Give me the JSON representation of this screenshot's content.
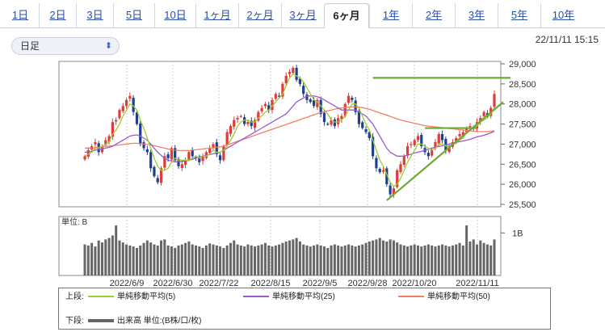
{
  "tabs": [
    {
      "label": "1日"
    },
    {
      "label": "2日"
    },
    {
      "label": "3日"
    },
    {
      "label": "5日"
    },
    {
      "label": "10日"
    },
    {
      "label": "1ヶ月"
    },
    {
      "label": "2ヶ月"
    },
    {
      "label": "3ヶ月"
    },
    {
      "label": "6ヶ月"
    },
    {
      "label": "1年"
    },
    {
      "label": "2年"
    },
    {
      "label": "3年"
    },
    {
      "label": "5年"
    },
    {
      "label": "10年"
    }
  ],
  "active_tab": "6ヶ月",
  "period_select": {
    "value": "日足"
  },
  "timestamp": "22/11/11 15:15",
  "colors": {
    "up": "#e03a3a",
    "down": "#1f3f8f",
    "ma5": "#9acd32",
    "ma25": "#9b59d0",
    "ma50": "#f08060",
    "trend": "#6fa832",
    "volume": "#666666"
  },
  "chart_data": {
    "type": "candlestick",
    "y_ticks": [
      "29,000",
      "28,500",
      "28,000",
      "27,500",
      "27,000",
      "26,500",
      "26,000",
      "25,500"
    ],
    "ylim": [
      25500,
      29000
    ],
    "x_labels": [
      "2022/6/9",
      "2022/6/30",
      "2022/7/22",
      "2022/8/15",
      "2022/9/5",
      "2022/9/28",
      "2022/10/20",
      "2022/11/11"
    ],
    "volume_unit_label": "単位: B",
    "volume_tick": "1B",
    "closes": [
      26700,
      26850,
      26950,
      27050,
      26800,
      26950,
      27100,
      27200,
      27550,
      27600,
      27850,
      27950,
      28100,
      28200,
      27800,
      27500,
      27000,
      26900,
      26800,
      26400,
      26200,
      26050,
      26400,
      26700,
      26650,
      26900,
      26600,
      26450,
      26500,
      26600,
      26800,
      26700,
      26650,
      26550,
      26700,
      26800,
      26900,
      27000,
      26750,
      26600,
      26950,
      27300,
      27450,
      27600,
      27650,
      27700,
      27500,
      27550,
      27450,
      27600,
      27800,
      27900,
      28000,
      27850,
      28100,
      28250,
      28200,
      28500,
      28700,
      28800,
      28900,
      28600,
      28500,
      28250,
      28100,
      28050,
      27950,
      28100,
      27750,
      27550,
      27500,
      27600,
      27450,
      27650,
      27700,
      28000,
      28200,
      28100,
      27800,
      27500,
      27400,
      27300,
      27150,
      26700,
      26400,
      26300,
      26350,
      26000,
      25750,
      25900,
      26350,
      26500,
      26700,
      26950,
      27000,
      27100,
      27200,
      26950,
      26800,
      26700,
      26850,
      27050,
      27250,
      27100,
      26850,
      26950,
      27050,
      27150,
      27250,
      27300,
      27400,
      27450,
      27400,
      27550,
      27650,
      27800,
      27700,
      27900,
      28250
    ],
    "ma5": [
      26700,
      26750,
      26800,
      26900,
      26900,
      26950,
      27000,
      27050,
      27250,
      27350,
      27500,
      27700,
      27850,
      28000,
      27950,
      27850,
      27600,
      27400,
      27150,
      26900,
      26650,
      26450,
      26350,
      26350,
      26400,
      26550,
      26650,
      26600,
      26600,
      26600,
      26600,
      26650,
      26700,
      26650,
      26700,
      26700,
      26750,
      26850,
      26800,
      26800,
      26850,
      26950,
      27100,
      27250,
      27450,
      27550,
      27600,
      27600,
      27550,
      27550,
      27650,
      27700,
      27800,
      27850,
      27950,
      28050,
      28150,
      28250,
      28450,
      28650,
      28750,
      28700,
      28650,
      28550,
      28400,
      28250,
      28100,
      28050,
      27950,
      27850,
      27750,
      27600,
      27550,
      27550,
      27600,
      27700,
      27850,
      28000,
      28000,
      27900,
      27700,
      27500,
      27350,
      27100,
      26850,
      26600,
      26450,
      26250,
      26050,
      25950,
      26000,
      26150,
      26350,
      26550,
      26700,
      26850,
      27000,
      27000,
      26950,
      26900,
      26850,
      26900,
      27000,
      27000,
      26950,
      26950,
      27000,
      27050,
      27100,
      27150,
      27300,
      27350,
      27400,
      27450,
      27550,
      27600,
      27650,
      27750,
      27900
    ],
    "ma25": [
      26800,
      26800,
      26820,
      26850,
      26860,
      26880,
      26900,
      26920,
      26950,
      27000,
      27050,
      27100,
      27150,
      27200,
      27220,
      27230,
      27200,
      27150,
      27100,
      27000,
      26900,
      26800,
      26720,
      26650,
      26600,
      26580,
      26560,
      26560,
      26570,
      26580,
      26600,
      26620,
      26650,
      26680,
      26700,
      26720,
      26740,
      26760,
      26780,
      26800,
      26850,
      26900,
      26950,
      27000,
      27050,
      27100,
      27150,
      27200,
      27250,
      27300,
      27350,
      27400,
      27450,
      27500,
      27550,
      27600,
      27650,
      27700,
      27750,
      27850,
      27950,
      28050,
      28100,
      28150,
      28200,
      28200,
      28200,
      28180,
      28150,
      28100,
      28050,
      28000,
      27950,
      27900,
      27850,
      27850,
      27850,
      27850,
      27850,
      27800,
      27750,
      27700,
      27600,
      27500,
      27350,
      27200,
      27050,
      26900,
      26800,
      26750,
      26700,
      26700,
      26700,
      26720,
      26750,
      26780,
      26800,
      26820,
      26850,
      26870,
      26900,
      26920,
      26940,
      26960,
      26980,
      27000,
      27020,
      27040,
      27060,
      27080,
      27100,
      27120,
      27150,
      27180,
      27200,
      27220,
      27250,
      27280,
      27320
    ],
    "ma50": [
      26900,
      26900,
      26900,
      26910,
      26920,
      26930,
      26940,
      26950,
      26960,
      26970,
      26980,
      26990,
      27000,
      27010,
      27020,
      27020,
      27010,
      27000,
      26990,
      26980,
      26960,
      26940,
      26920,
      26900,
      26880,
      26860,
      26850,
      26840,
      26840,
      26840,
      26840,
      26850,
      26860,
      26870,
      26880,
      26890,
      26900,
      26910,
      26920,
      26930,
      26950,
      26980,
      27010,
      27040,
      27070,
      27100,
      27130,
      27160,
      27190,
      27220,
      27250,
      27280,
      27310,
      27340,
      27370,
      27400,
      27430,
      27460,
      27490,
      27520,
      27550,
      27580,
      27610,
      27640,
      27670,
      27700,
      27730,
      27760,
      27790,
      27810,
      27830,
      27850,
      27870,
      27890,
      27900,
      27910,
      27920,
      27930,
      27930,
      27920,
      27910,
      27890,
      27870,
      27840,
      27810,
      27780,
      27750,
      27720,
      27690,
      27660,
      27630,
      27600,
      27580,
      27560,
      27540,
      27520,
      27500,
      27480,
      27460,
      27450,
      27440,
      27430,
      27420,
      27410,
      27400,
      27390,
      27380,
      27370,
      27360,
      27350,
      27340,
      27330,
      27320,
      27310,
      27310,
      27310,
      27310,
      27320,
      27330
    ],
    "volumes": [
      0.62,
      0.6,
      0.65,
      0.58,
      0.7,
      0.66,
      0.72,
      0.75,
      0.8,
      1.0,
      0.7,
      0.66,
      0.62,
      0.6,
      0.58,
      0.55,
      0.6,
      0.65,
      0.7,
      0.66,
      0.62,
      0.6,
      0.7,
      0.72,
      0.6,
      0.58,
      0.55,
      0.6,
      0.62,
      0.65,
      0.68,
      0.62,
      0.6,
      0.58,
      0.55,
      0.6,
      0.64,
      0.62,
      0.6,
      0.58,
      0.55,
      0.6,
      0.65,
      0.7,
      0.62,
      0.6,
      0.58,
      0.62,
      0.6,
      0.58,
      0.6,
      0.62,
      0.65,
      0.6,
      0.58,
      0.6,
      0.62,
      0.65,
      0.68,
      0.7,
      0.72,
      0.75,
      0.68,
      0.62,
      0.6,
      0.58,
      0.6,
      0.62,
      0.6,
      0.58,
      0.55,
      0.6,
      0.62,
      0.6,
      0.58,
      0.6,
      0.62,
      0.6,
      0.58,
      0.6,
      0.62,
      0.65,
      0.68,
      0.7,
      0.72,
      0.75,
      0.7,
      0.68,
      0.72,
      0.7,
      0.66,
      0.62,
      0.6,
      0.58,
      0.6,
      0.62,
      0.6,
      0.58,
      0.6,
      0.62,
      0.6,
      0.58,
      0.6,
      0.62,
      0.6,
      0.58,
      0.6,
      0.62,
      0.65,
      0.6,
      1.0,
      0.68,
      0.72,
      0.62,
      0.7,
      0.65,
      0.62,
      0.6,
      0.72
    ]
  },
  "legend": {
    "upper_label": "上段:",
    "lower_label": "下段:",
    "ma5_label": "単純移動平均(5)",
    "ma25_label": "単純移動平均(25)",
    "ma50_label": "単純移動平均(50)",
    "volume_label": "出来高 単位:(B株/口/枚)"
  }
}
